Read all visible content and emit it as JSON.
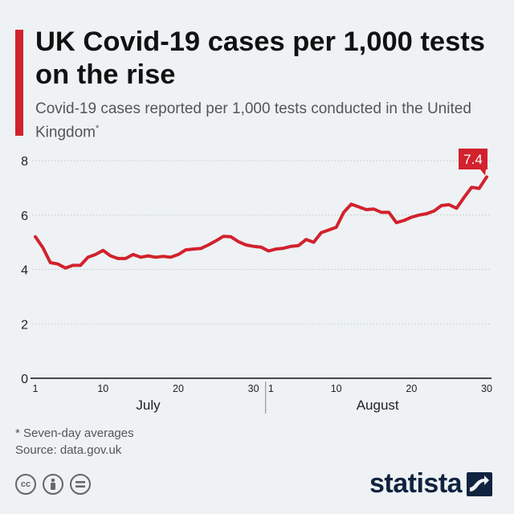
{
  "title": "UK Covid-19 cases per 1,000 tests on the rise",
  "subtitle": "Covid-19 cases reported per 1,000 tests conducted in the United Kingdom",
  "subtitle_marker": "*",
  "footnote": "* Seven-day averages",
  "source": "Source: data.gov.uk",
  "brand": "statista",
  "colors": {
    "line": "#d2222d",
    "accent": "#d2222d",
    "grid": "#c9d2d8",
    "brand": "#10233f"
  },
  "icons": [
    "creative-commons-icon",
    "attribution-icon",
    "no-derivatives-icon"
  ],
  "chart_data": {
    "type": "line",
    "title": "UK Covid-19 cases per 1,000 tests on the rise",
    "xlabel": "",
    "ylabel": "",
    "ylim": [
      0,
      8
    ],
    "yticks": [
      0,
      2,
      4,
      6,
      8
    ],
    "grid": true,
    "months": [
      {
        "name": "July",
        "ticks": [
          "1",
          "10",
          "20",
          "30"
        ]
      },
      {
        "name": "August",
        "ticks": [
          "1",
          "10",
          "20",
          "30"
        ]
      }
    ],
    "callout": {
      "label": "7.4",
      "value": 7.4
    },
    "series": [
      {
        "name": "Cases per 1,000 tests",
        "dates": [
          "Jul 1",
          "Jul 2",
          "Jul 3",
          "Jul 4",
          "Jul 5",
          "Jul 6",
          "Jul 7",
          "Jul 8",
          "Jul 9",
          "Jul 10",
          "Jul 11",
          "Jul 12",
          "Jul 13",
          "Jul 14",
          "Jul 15",
          "Jul 16",
          "Jul 17",
          "Jul 18",
          "Jul 19",
          "Jul 20",
          "Jul 21",
          "Jul 22",
          "Jul 23",
          "Jul 24",
          "Jul 25",
          "Jul 26",
          "Jul 27",
          "Jul 28",
          "Jul 29",
          "Jul 30",
          "Jul 31",
          "Aug 1",
          "Aug 2",
          "Aug 3",
          "Aug 4",
          "Aug 5",
          "Aug 6",
          "Aug 7",
          "Aug 8",
          "Aug 9",
          "Aug 10",
          "Aug 11",
          "Aug 12",
          "Aug 13",
          "Aug 14",
          "Aug 15",
          "Aug 16",
          "Aug 17",
          "Aug 18",
          "Aug 19",
          "Aug 20",
          "Aug 21",
          "Aug 22",
          "Aug 23",
          "Aug 24",
          "Aug 25",
          "Aug 26",
          "Aug 27",
          "Aug 28",
          "Aug 29",
          "Aug 30"
        ],
        "values": [
          5.2,
          4.8,
          4.25,
          4.2,
          4.05,
          4.15,
          4.15,
          4.45,
          4.55,
          4.7,
          4.5,
          4.4,
          4.4,
          4.55,
          4.45,
          4.5,
          4.45,
          4.48,
          4.45,
          4.55,
          4.72,
          4.75,
          4.77,
          4.9,
          5.05,
          5.22,
          5.2,
          5.02,
          4.9,
          4.85,
          4.82,
          4.68,
          4.75,
          4.78,
          4.85,
          4.88,
          5.1,
          5.0,
          5.35,
          5.45,
          5.55,
          6.1,
          6.4,
          6.3,
          6.2,
          6.22,
          6.1,
          6.1,
          5.72,
          5.8,
          5.92,
          6.0,
          6.05,
          6.15,
          6.35,
          6.38,
          6.25,
          6.65,
          7.02,
          6.98,
          7.4
        ]
      }
    ]
  }
}
